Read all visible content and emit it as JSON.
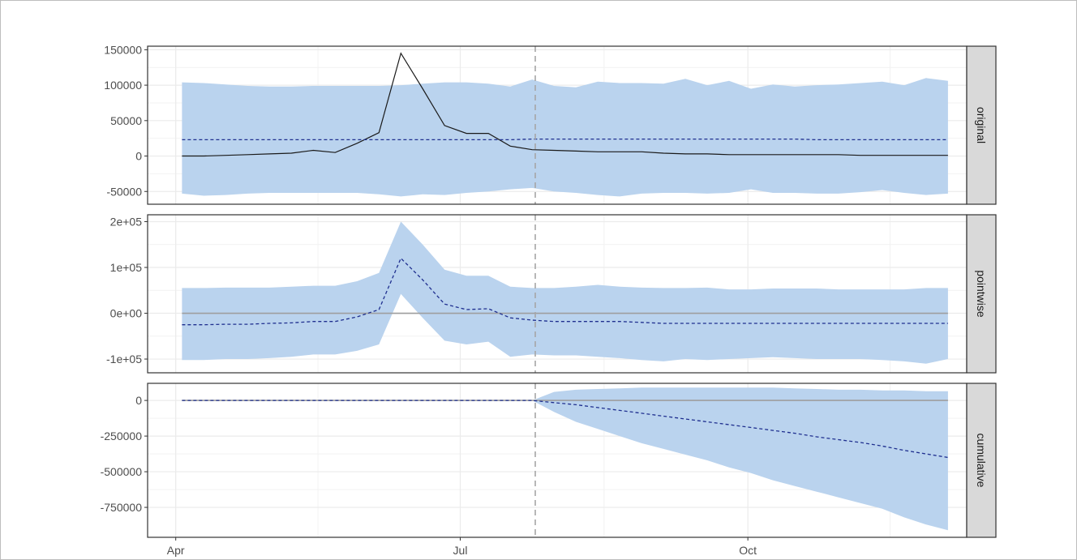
{
  "chart_data": {
    "type": "line",
    "x_axis": {
      "ticks": [
        "Apr",
        "Jul",
        "Oct"
      ],
      "tick_dates": [
        "2023-04-01",
        "2023-07-01",
        "2023-10-01"
      ],
      "range": [
        "2023-03-23",
        "2023-12-10"
      ]
    },
    "intervention_date": "2023-07-25",
    "dates": [
      "2023-04-03",
      "2023-04-10",
      "2023-04-17",
      "2023-04-24",
      "2023-05-01",
      "2023-05-08",
      "2023-05-15",
      "2023-05-22",
      "2023-05-29",
      "2023-06-05",
      "2023-06-12",
      "2023-06-19",
      "2023-06-26",
      "2023-07-03",
      "2023-07-10",
      "2023-07-17",
      "2023-07-24",
      "2023-07-31",
      "2023-08-07",
      "2023-08-14",
      "2023-08-21",
      "2023-08-28",
      "2023-09-04",
      "2023-09-11",
      "2023-09-18",
      "2023-09-25",
      "2023-10-02",
      "2023-10-09",
      "2023-10-16",
      "2023-10-23",
      "2023-10-30",
      "2023-11-06",
      "2023-11-13",
      "2023-11-20",
      "2023-11-27",
      "2023-12-04"
    ],
    "panels": [
      {
        "label": "original",
        "y_ticks": [
          "150000",
          "100000",
          "50000",
          "0",
          "-50000"
        ],
        "y_tick_values": [
          150000,
          100000,
          50000,
          0,
          -50000
        ],
        "ylim": [
          -68000,
          155000
        ],
        "series": [
          {
            "values": [
              0,
              0,
              1000,
              2000,
              3000,
              4000,
              8000,
              5000,
              18000,
              33000,
              145000,
              95000,
              43000,
              32000,
              32000,
              14000,
              9000,
              8000,
              7000,
              6000,
              6000,
              6000,
              4000,
              3000,
              3000,
              2000,
              2000,
              2000,
              2000,
              2000,
              2000,
              1000,
              1000,
              1000,
              1000,
              1000
            ],
            "style": "solid",
            "color": "#1a1a1a"
          },
          {
            "values": [
              23000,
              23000,
              23000,
              23000,
              23000,
              23000,
              23000,
              23000,
              23000,
              23000,
              23000,
              23000,
              23000,
              23000,
              23000,
              23000,
              24000,
              24000,
              24000,
              24000,
              24000,
              24000,
              24000,
              24000,
              24000,
              24000,
              24000,
              24000,
              24000,
              23000,
              23000,
              23000,
              23000,
              23000,
              23000,
              23000
            ],
            "style": "dashed",
            "color": "#1f2f8f"
          }
        ],
        "band": {
          "upper": [
            104000,
            103000,
            101000,
            99000,
            98000,
            98000,
            99000,
            99000,
            99000,
            99000,
            100000,
            102000,
            104000,
            104000,
            102000,
            98000,
            108000,
            99000,
            97000,
            105000,
            103000,
            103000,
            102000,
            109000,
            100000,
            106000,
            95000,
            101000,
            98000,
            100000,
            101000,
            103000,
            105000,
            100000,
            110000,
            106000
          ],
          "lower": [
            -53000,
            -56000,
            -55000,
            -53000,
            -52000,
            -52000,
            -52000,
            -52000,
            -52000,
            -54000,
            -57000,
            -54000,
            -55000,
            -52000,
            -50000,
            -47000,
            -45000,
            -50000,
            -52000,
            -55000,
            -57000,
            -53000,
            -52000,
            -52000,
            -53000,
            -52000,
            -47000,
            -52000,
            -52000,
            -53000,
            -53000,
            -51000,
            -48000,
            -52000,
            -55000,
            -53000
          ]
        }
      },
      {
        "label": "pointwise",
        "y_ticks": [
          "2e+05",
          "1e+05",
          "0e+00",
          "-1e+05"
        ],
        "y_tick_values": [
          200000,
          100000,
          0,
          -100000
        ],
        "ylim": [
          -130000,
          215000
        ],
        "series": [
          {
            "values": [
              -25000,
              -25000,
              -24000,
              -24000,
              -22000,
              -21000,
              -18000,
              -18000,
              -8000,
              8000,
              120000,
              73000,
              20000,
              8000,
              10000,
              -10000,
              -15000,
              -18000,
              -18000,
              -18000,
              -18000,
              -20000,
              -22000,
              -22000,
              -22000,
              -22000,
              -22000,
              -22000,
              -22000,
              -22000,
              -22000,
              -22000,
              -22000,
              -22000,
              -22000,
              -22000
            ],
            "style": "dashed",
            "color": "#1f2f8f"
          }
        ],
        "reference_line": 0,
        "band": {
          "upper": [
            55000,
            55000,
            56000,
            56000,
            56000,
            58000,
            60000,
            60000,
            70000,
            88000,
            200000,
            150000,
            95000,
            82000,
            82000,
            58000,
            55000,
            55000,
            58000,
            62000,
            58000,
            56000,
            55000,
            55000,
            56000,
            52000,
            52000,
            54000,
            54000,
            54000,
            52000,
            52000,
            52000,
            52000,
            55000,
            55000
          ],
          "lower": [
            -102000,
            -102000,
            -100000,
            -100000,
            -98000,
            -95000,
            -90000,
            -90000,
            -82000,
            -68000,
            42000,
            -10000,
            -60000,
            -68000,
            -62000,
            -95000,
            -90000,
            -92000,
            -92000,
            -95000,
            -98000,
            -102000,
            -105000,
            -100000,
            -102000,
            -100000,
            -98000,
            -96000,
            -98000,
            -100000,
            -100000,
            -100000,
            -102000,
            -105000,
            -110000,
            -100000
          ]
        }
      },
      {
        "label": "cumulative",
        "y_ticks": [
          "0",
          "-250000",
          "-500000",
          "-750000"
        ],
        "y_tick_values": [
          0,
          -250000,
          -500000,
          -750000
        ],
        "ylim": [
          -960000,
          120000
        ],
        "series": [
          {
            "values": [
              0,
              0,
              0,
              0,
              0,
              0,
              0,
              0,
              0,
              0,
              0,
              0,
              0,
              0,
              0,
              0,
              0,
              -15000,
              -30000,
              -50000,
              -70000,
              -90000,
              -110000,
              -130000,
              -150000,
              -170000,
              -190000,
              -210000,
              -230000,
              -255000,
              -275000,
              -295000,
              -320000,
              -350000,
              -375000,
              -400000
            ],
            "style": "dashed",
            "color": "#1f2f8f"
          }
        ],
        "reference_line": 0,
        "band": {
          "upper": [
            0,
            0,
            0,
            0,
            0,
            0,
            0,
            0,
            0,
            0,
            0,
            0,
            0,
            0,
            0,
            0,
            0,
            60000,
            75000,
            80000,
            85000,
            90000,
            90000,
            90000,
            90000,
            90000,
            90000,
            90000,
            85000,
            80000,
            75000,
            75000,
            70000,
            70000,
            65000,
            65000
          ],
          "lower": [
            0,
            0,
            0,
            0,
            0,
            0,
            0,
            0,
            0,
            0,
            0,
            0,
            0,
            0,
            0,
            0,
            0,
            -80000,
            -150000,
            -200000,
            -250000,
            -300000,
            -340000,
            -380000,
            -420000,
            -470000,
            -510000,
            -560000,
            -600000,
            -640000,
            -680000,
            -720000,
            -760000,
            -820000,
            -870000,
            -910000
          ]
        }
      }
    ],
    "band_color": "#bad3ee",
    "intervention_line_color": "#a6a6a6",
    "grid": true,
    "legend": "none"
  }
}
